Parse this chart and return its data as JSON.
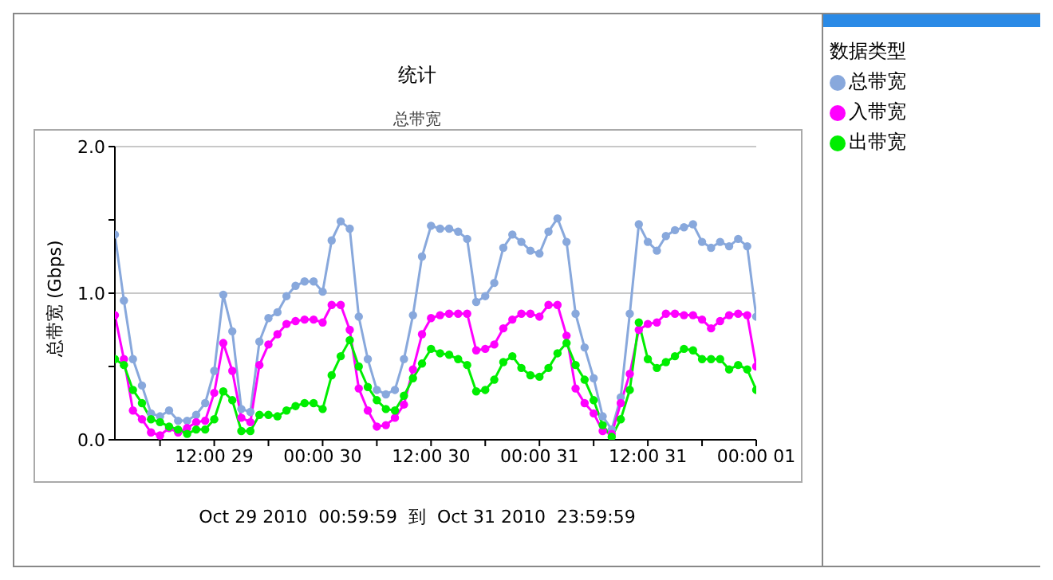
{
  "chart_data": {
    "type": "line",
    "title": "统计",
    "subtitle": "总带宽",
    "ylabel": "总带宽 (Gbps)",
    "legend_title": "数据类型",
    "annotations": [
      "Oct 29 2010  00:59:59  到  Oct 31 2010  23:59:59"
    ],
    "x": [
      "2010-10-29T01:00",
      "2010-10-29T02:00",
      "2010-10-29T03:00",
      "2010-10-29T04:00",
      "2010-10-29T05:00",
      "2010-10-29T06:00",
      "2010-10-29T07:00",
      "2010-10-29T08:00",
      "2010-10-29T09:00",
      "2010-10-29T10:00",
      "2010-10-29T11:00",
      "2010-10-29T12:00",
      "2010-10-29T13:00",
      "2010-10-29T14:00",
      "2010-10-29T15:00",
      "2010-10-29T16:00",
      "2010-10-29T17:00",
      "2010-10-29T18:00",
      "2010-10-29T19:00",
      "2010-10-29T20:00",
      "2010-10-29T21:00",
      "2010-10-29T22:00",
      "2010-10-29T23:00",
      "2010-10-30T00:00",
      "2010-10-30T01:00",
      "2010-10-30T02:00",
      "2010-10-30T03:00",
      "2010-10-30T04:00",
      "2010-10-30T05:00",
      "2010-10-30T06:00",
      "2010-10-30T07:00",
      "2010-10-30T08:00",
      "2010-10-30T09:00",
      "2010-10-30T10:00",
      "2010-10-30T11:00",
      "2010-10-30T12:00",
      "2010-10-30T13:00",
      "2010-10-30T14:00",
      "2010-10-30T15:00",
      "2010-10-30T16:00",
      "2010-10-30T17:00",
      "2010-10-30T18:00",
      "2010-10-30T19:00",
      "2010-10-30T20:00",
      "2010-10-30T21:00",
      "2010-10-30T22:00",
      "2010-10-30T23:00",
      "2010-10-31T00:00",
      "2010-10-31T01:00",
      "2010-10-31T02:00",
      "2010-10-31T03:00",
      "2010-10-31T04:00",
      "2010-10-31T05:00",
      "2010-10-31T06:00",
      "2010-10-31T07:00",
      "2010-10-31T08:00",
      "2010-10-31T09:00",
      "2010-10-31T10:00",
      "2010-10-31T11:00",
      "2010-10-31T12:00",
      "2010-10-31T13:00",
      "2010-10-31T14:00",
      "2010-10-31T15:00",
      "2010-10-31T16:00",
      "2010-10-31T17:00",
      "2010-10-31T18:00",
      "2010-10-31T19:00",
      "2010-10-31T20:00",
      "2010-10-31T21:00",
      "2010-10-31T22:00",
      "2010-10-31T23:00",
      "2010-11-01T00:00"
    ],
    "xlim": [
      "2010-10-29T01:00",
      "2010-11-01T00:00"
    ],
    "xticks": [
      {
        "value": "2010-10-29T06:00",
        "label": null
      },
      {
        "value": "2010-10-29T12:00",
        "label": "12:00 29"
      },
      {
        "value": "2010-10-29T18:00",
        "label": null
      },
      {
        "value": "2010-10-30T00:00",
        "label": "00:00 30"
      },
      {
        "value": "2010-10-30T06:00",
        "label": null
      },
      {
        "value": "2010-10-30T12:00",
        "label": "12:00 30"
      },
      {
        "value": "2010-10-30T18:00",
        "label": null
      },
      {
        "value": "2010-10-31T00:00",
        "label": "00:00 31"
      },
      {
        "value": "2010-10-31T06:00",
        "label": null
      },
      {
        "value": "2010-10-31T12:00",
        "label": "12:00 31"
      },
      {
        "value": "2010-10-31T18:00",
        "label": null
      },
      {
        "value": "2010-11-01T00:00",
        "label": "00:00 01"
      }
    ],
    "ylim": [
      0,
      2
    ],
    "yticks": [
      {
        "value": 0,
        "label": "0.0"
      },
      {
        "value": 0.5,
        "label": null
      },
      {
        "value": 1,
        "label": "1.0"
      },
      {
        "value": 1.5,
        "label": null
      },
      {
        "value": 2,
        "label": "2.0"
      }
    ],
    "grid": "y",
    "legend": "right",
    "marker": "circle",
    "line_style": "solid",
    "series": [
      {
        "name": "总带宽",
        "color": "#88a8dc",
        "values": [
          1.4,
          0.95,
          0.55,
          0.37,
          0.18,
          0.16,
          0.2,
          0.13,
          0.13,
          0.17,
          0.25,
          0.47,
          0.99,
          0.74,
          0.21,
          0.19,
          0.67,
          0.83,
          0.87,
          0.98,
          1.05,
          1.08,
          1.08,
          1.01,
          1.36,
          1.49,
          1.44,
          0.84,
          0.55,
          0.34,
          0.31,
          0.34,
          0.55,
          0.85,
          1.25,
          1.46,
          1.44,
          1.44,
          1.42,
          1.37,
          0.94,
          0.98,
          1.07,
          1.31,
          1.4,
          1.35,
          1.29,
          1.27,
          1.42,
          1.51,
          1.35,
          0.86,
          0.63,
          0.42,
          0.16,
          0.07,
          0.29,
          0.86,
          1.47,
          1.35,
          1.29,
          1.39,
          1.43,
          1.45,
          1.47,
          1.35,
          1.31,
          1.35,
          1.32,
          1.37,
          1.32,
          0.84
        ]
      },
      {
        "name": "入带宽",
        "color": "#ff00ff",
        "values": [
          0.85,
          0.55,
          0.2,
          0.14,
          0.05,
          0.03,
          0.08,
          0.05,
          0.08,
          0.12,
          0.13,
          0.32,
          0.66,
          0.47,
          0.15,
          0.12,
          0.51,
          0.65,
          0.72,
          0.79,
          0.81,
          0.82,
          0.82,
          0.8,
          0.92,
          0.92,
          0.75,
          0.35,
          0.2,
          0.09,
          0.1,
          0.15,
          0.24,
          0.48,
          0.72,
          0.83,
          0.85,
          0.86,
          0.86,
          0.86,
          0.61,
          0.62,
          0.65,
          0.76,
          0.82,
          0.86,
          0.86,
          0.84,
          0.92,
          0.92,
          0.71,
          0.35,
          0.25,
          0.18,
          0.06,
          0.04,
          0.25,
          0.45,
          0.75,
          0.79,
          0.8,
          0.86,
          0.86,
          0.85,
          0.85,
          0.82,
          0.76,
          0.81,
          0.85,
          0.86,
          0.85,
          0.5
        ]
      },
      {
        "name": "出带宽",
        "color": "#00ee00",
        "values": [
          0.55,
          0.51,
          0.34,
          0.25,
          0.14,
          0.12,
          0.09,
          0.07,
          0.04,
          0.07,
          0.07,
          0.14,
          0.33,
          0.27,
          0.06,
          0.06,
          0.17,
          0.17,
          0.16,
          0.2,
          0.23,
          0.25,
          0.25,
          0.21,
          0.44,
          0.57,
          0.68,
          0.5,
          0.36,
          0.27,
          0.21,
          0.2,
          0.3,
          0.42,
          0.52,
          0.62,
          0.59,
          0.58,
          0.55,
          0.51,
          0.33,
          0.34,
          0.41,
          0.53,
          0.57,
          0.49,
          0.44,
          0.43,
          0.49,
          0.59,
          0.66,
          0.51,
          0.41,
          0.27,
          0.1,
          0.02,
          0.14,
          0.34,
          0.8,
          0.55,
          0.49,
          0.53,
          0.57,
          0.62,
          0.61,
          0.55,
          0.55,
          0.55,
          0.48,
          0.51,
          0.48,
          0.34
        ]
      }
    ]
  }
}
